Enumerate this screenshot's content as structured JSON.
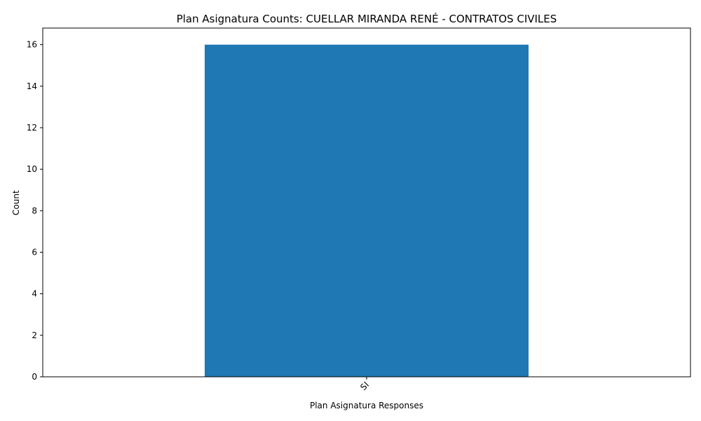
{
  "chart_data": {
    "type": "bar",
    "title": "Plan Asignatura Counts: CUELLAR MIRANDA RENÉ - CONTRATOS CIVILES",
    "xlabel": "Plan Asignatura Responses",
    "ylabel": "Count",
    "categories": [
      "SI"
    ],
    "values": [
      16
    ],
    "ylim": [
      0,
      16.8
    ],
    "yticks": [
      0,
      2,
      4,
      6,
      8,
      10,
      12,
      14,
      16
    ],
    "xtick_rotation": -45,
    "bar_color": "#1f77b4",
    "grid": false,
    "legend": "none"
  }
}
